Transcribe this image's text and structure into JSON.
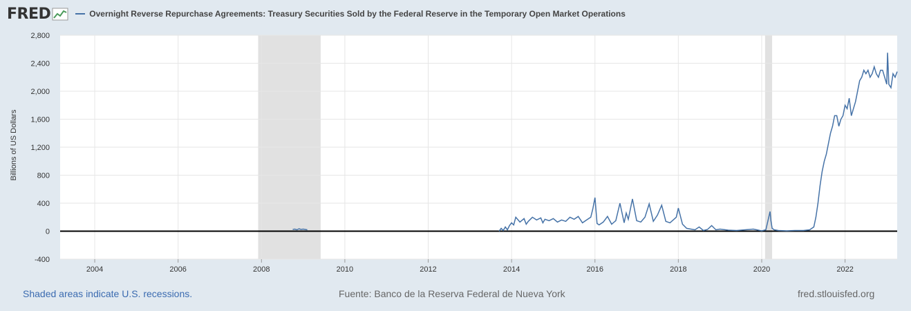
{
  "header": {
    "logo_text": "FRED",
    "title": "Overnight Reverse Repurchase Agreements: Treasury Securities Sold by the Federal Reserve in the Temporary Open Market Operations",
    "series_color": "#4572a7"
  },
  "footer": {
    "recession_note": "Shaded areas indicate U.S. recessions.",
    "source": "Fuente: Banco de la Reserva Federal de Nueva York",
    "site": "fred.stlouisfed.org"
  },
  "chart_data": {
    "type": "line",
    "title": "Overnight Reverse Repurchase Agreements: Treasury Securities Sold by the Federal Reserve in the Temporary Open Market Operations",
    "ylabel": "Billions of US Dollars",
    "xlabel": "",
    "xlim": [
      2003.17,
      2023.25
    ],
    "ylim": [
      -400,
      2800
    ],
    "xticks": [
      2004,
      2006,
      2008,
      2010,
      2012,
      2014,
      2016,
      2018,
      2020,
      2022
    ],
    "yticks": [
      -400,
      0,
      400,
      800,
      1200,
      1600,
      2000,
      2400,
      2800
    ],
    "ytick_labels": [
      "-400",
      "0",
      "400",
      "800",
      "1,200",
      "1,600",
      "2,000",
      "2,400",
      "2,800"
    ],
    "grid": true,
    "recessions": [
      [
        2007.92,
        2009.42
      ],
      [
        2020.08,
        2020.25
      ]
    ],
    "series": [
      {
        "color": "#4572a7",
        "x": [
          2008.75,
          2008.8,
          2008.85,
          2008.9,
          2008.95,
          2009.0,
          2009.05,
          2009.1,
          2013.7,
          2013.75,
          2013.8,
          2013.85,
          2013.9,
          2013.95,
          2014.0,
          2014.05,
          2014.1,
          2014.2,
          2014.3,
          2014.35,
          2014.4,
          2014.5,
          2014.6,
          2014.7,
          2014.75,
          2014.8,
          2014.9,
          2015.0,
          2015.1,
          2015.2,
          2015.3,
          2015.4,
          2015.5,
          2015.6,
          2015.7,
          2015.8,
          2015.9,
          2015.95,
          2016.0,
          2016.05,
          2016.1,
          2016.2,
          2016.3,
          2016.4,
          2016.5,
          2016.6,
          2016.7,
          2016.75,
          2016.8,
          2016.9,
          2017.0,
          2017.1,
          2017.2,
          2017.3,
          2017.4,
          2017.5,
          2017.6,
          2017.7,
          2017.8,
          2017.95,
          2018.0,
          2018.1,
          2018.2,
          2018.3,
          2018.4,
          2018.5,
          2018.6,
          2018.7,
          2018.8,
          2018.9,
          2019.0,
          2019.2,
          2019.4,
          2019.6,
          2019.8,
          2020.0,
          2020.1,
          2020.2,
          2020.22,
          2020.25,
          2020.3,
          2020.4,
          2020.6,
          2020.8,
          2021.0,
          2021.15,
          2021.25,
          2021.3,
          2021.35,
          2021.4,
          2021.45,
          2021.5,
          2021.55,
          2021.6,
          2021.65,
          2021.7,
          2021.75,
          2021.8,
          2021.85,
          2021.9,
          2021.95,
          2022.0,
          2022.05,
          2022.1,
          2022.15,
          2022.2,
          2022.25,
          2022.3,
          2022.35,
          2022.4,
          2022.45,
          2022.5,
          2022.55,
          2022.6,
          2022.65,
          2022.7,
          2022.75,
          2022.8,
          2022.85,
          2022.9,
          2022.95,
          2023.0,
          2023.02,
          2023.05,
          2023.1,
          2023.15,
          2023.2,
          2023.25
        ],
        "y": [
          25,
          30,
          20,
          35,
          25,
          30,
          25,
          20,
          0,
          40,
          10,
          60,
          20,
          80,
          120,
          90,
          200,
          130,
          180,
          100,
          140,
          200,
          160,
          190,
          120,
          170,
          150,
          180,
          130,
          160,
          140,
          200,
          170,
          210,
          120,
          160,
          200,
          320,
          480,
          110,
          90,
          130,
          210,
          100,
          150,
          400,
          120,
          260,
          170,
          460,
          150,
          130,
          200,
          390,
          140,
          230,
          370,
          140,
          120,
          200,
          330,
          100,
          40,
          30,
          20,
          60,
          10,
          25,
          80,
          20,
          30,
          15,
          10,
          20,
          30,
          5,
          20,
          280,
          150,
          40,
          20,
          10,
          5,
          10,
          10,
          20,
          60,
          200,
          400,
          650,
          850,
          1000,
          1100,
          1250,
          1400,
          1500,
          1650,
          1650,
          1500,
          1600,
          1650,
          1800,
          1750,
          1900,
          1650,
          1750,
          1850,
          2000,
          2150,
          2200,
          2300,
          2250,
          2300,
          2200,
          2250,
          2350,
          2250,
          2200,
          2300,
          2300,
          2200,
          2100,
          2550,
          2100,
          2050,
          2250,
          2200,
          2280
        ]
      }
    ]
  }
}
